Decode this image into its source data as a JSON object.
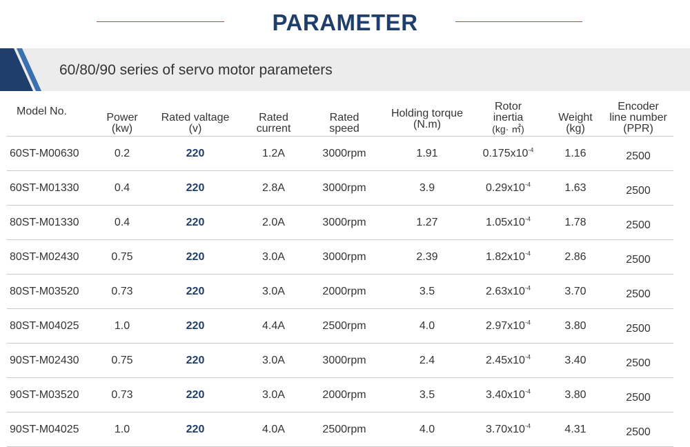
{
  "header": {
    "title": "PARAMETER",
    "subtitle": "60/80/90 series of servo motor parameters"
  },
  "colors": {
    "title": "#1f3e6c",
    "accent_dark": "#1f3e6c",
    "accent_light": "#3a6fb0",
    "rule": "#b0473a",
    "band": "#ececec"
  },
  "table": {
    "headers": [
      {
        "line1": "Model  No.",
        "line2": ""
      },
      {
        "line1": "Power",
        "line2": "(kw)"
      },
      {
        "line1": "Rated valtage",
        "line2": "(v)"
      },
      {
        "line1": "Rated",
        "line2": "current"
      },
      {
        "line1": "Rated",
        "line2": "speed"
      },
      {
        "line1": "Holding torque",
        "line2": "(N.m)"
      },
      {
        "line1": "Rotor",
        "line2": "inertia",
        "line3": "(kg· ㎡)"
      },
      {
        "line1": "Weight",
        "line2": "(kg)"
      },
      {
        "line1": "Encoder",
        "line2": "line number",
        "line3": "(PPR)"
      }
    ],
    "inertia_exponent": "-4",
    "rows": [
      {
        "model": "60ST-M00630",
        "power": "0.2",
        "voltage": "220",
        "current": "1.2A",
        "speed": "3000rpm",
        "torque": "1.91",
        "inertia": "0.175x10",
        "weight": "1.16",
        "ppr": "2500"
      },
      {
        "model": "60ST-M01330",
        "power": "0.4",
        "voltage": "220",
        "current": "2.8A",
        "speed": "3000rpm",
        "torque": "3.9",
        "inertia": "0.29x10",
        "weight": "1.63",
        "ppr": "2500"
      },
      {
        "model": "80ST-M01330",
        "power": "0.4",
        "voltage": "220",
        "current": "2.0A",
        "speed": "3000rpm",
        "torque": "1.27",
        "inertia": "1.05x10",
        "weight": "1.78",
        "ppr": "2500"
      },
      {
        "model": "80ST-M02430",
        "power": "0.75",
        "voltage": "220",
        "current": "3.0A",
        "speed": "3000rpm",
        "torque": "2.39",
        "inertia": "1.82x10",
        "weight": "2.86",
        "ppr": "2500"
      },
      {
        "model": "80ST-M03520",
        "power": "0.73",
        "voltage": "220",
        "current": "3.0A",
        "speed": "2000rpm",
        "torque": "3.5",
        "inertia": "2.63x10",
        "weight": "3.70",
        "ppr": "2500"
      },
      {
        "model": "80ST-M04025",
        "power": "1.0",
        "voltage": "220",
        "current": "4.4A",
        "speed": "2500rpm",
        "torque": "4.0",
        "inertia": "2.97x10",
        "weight": "3.80",
        "ppr": "2500"
      },
      {
        "model": "90ST-M02430",
        "power": "0.75",
        "voltage": "220",
        "current": "3.0A",
        "speed": "3000rpm",
        "torque": "2.4",
        "inertia": "2.45x10",
        "weight": "3.40",
        "ppr": "2500"
      },
      {
        "model": "90ST-M03520",
        "power": "0.73",
        "voltage": "220",
        "current": "3.0A",
        "speed": "2000rpm",
        "torque": "3.5",
        "inertia": "3.40x10",
        "weight": "3.80",
        "ppr": "2500"
      },
      {
        "model": "90ST-M04025",
        "power": "1.0",
        "voltage": "220",
        "current": "4.0A",
        "speed": "2500rpm",
        "torque": "4.0",
        "inertia": "3.70x10",
        "weight": "4.31",
        "ppr": "2500"
      }
    ]
  }
}
